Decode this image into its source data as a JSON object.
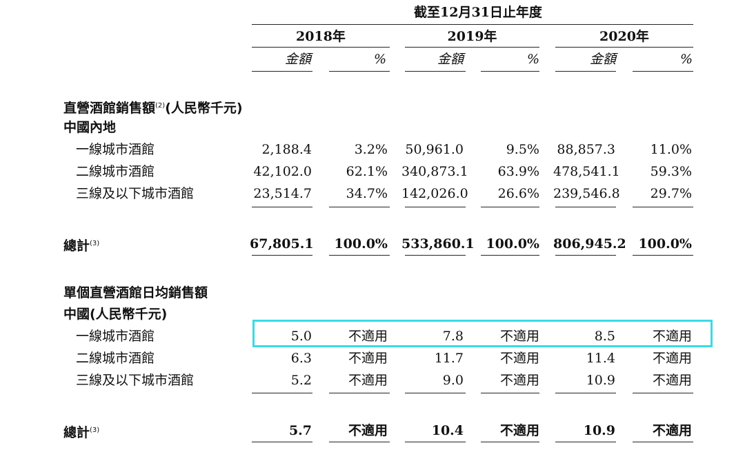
{
  "header": {
    "title": "截至12月31日止年度",
    "years": [
      "2018年",
      "2019年",
      "2020年"
    ],
    "amount_label": "金額",
    "pct_label": "%"
  },
  "sales": {
    "title": "直營酒館銷售額",
    "title_sup": "(2)",
    "title_suffix": "(人民幣千元)",
    "region": "中國內地",
    "rows": [
      {
        "label": "一線城市酒館",
        "values": [
          "2,188.4",
          "3.2%",
          "50,961.0",
          "9.5%",
          "88,857.3",
          "11.0%"
        ]
      },
      {
        "label": "二線城市酒館",
        "values": [
          "42,102.0",
          "62.1%",
          "340,873.1",
          "63.9%",
          "478,541.1",
          "59.3%"
        ]
      },
      {
        "label": "三線及以下城市酒館",
        "values": [
          "23,514.7",
          "34.7%",
          "142,026.0",
          "26.6%",
          "239,546.8",
          "29.7%"
        ]
      }
    ],
    "total": {
      "label": "總計",
      "sup": "(3)",
      "values": [
        "67,805.1",
        "100.0%",
        "533,860.1",
        "100.0%",
        "806,945.2",
        "100.0%"
      ]
    }
  },
  "daily": {
    "title": "單個直營酒館日均銷售額",
    "subtitle": "中國(人民幣千元)",
    "rows": [
      {
        "label": "一線城市酒館",
        "values": [
          "5.0",
          "不適用",
          "7.8",
          "不適用",
          "8.5",
          "不適用"
        ]
      },
      {
        "label": "二線城市酒館",
        "values": [
          "6.3",
          "不適用",
          "11.7",
          "不適用",
          "11.4",
          "不適用"
        ]
      },
      {
        "label": "三線及以下城市酒館",
        "values": [
          "5.2",
          "不適用",
          "9.0",
          "不適用",
          "10.9",
          "不適用"
        ]
      }
    ],
    "total": {
      "label": "總計",
      "sup": "(3)",
      "values": [
        "5.7",
        "不適用",
        "10.4",
        "不適用",
        "10.9",
        "不適用"
      ]
    }
  },
  "highlight_color": "#38dbe6"
}
